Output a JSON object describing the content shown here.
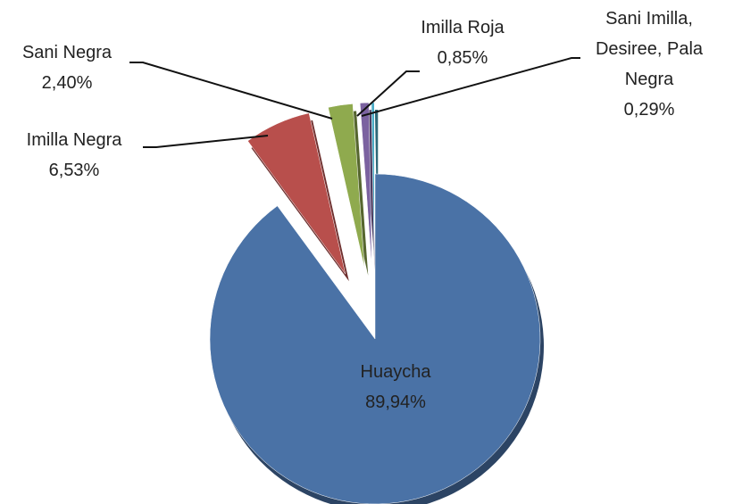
{
  "chart_data": {
    "type": "pie",
    "categories": [
      "Huaycha",
      "Imilla Negra",
      "Sani Negra",
      "Imilla Roja",
      "Sani Imilla, Desiree, Pala Negra"
    ],
    "values": [
      89.94,
      6.53,
      2.4,
      0.85,
      0.29
    ],
    "value_labels": [
      "89,94%",
      "6,53%",
      "2,40%",
      "0,85%",
      "0,29%"
    ],
    "colors": [
      "#4a72a6",
      "#b84f4c",
      "#8faa4e",
      "#7b62a0",
      "#4bacc6"
    ]
  }
}
